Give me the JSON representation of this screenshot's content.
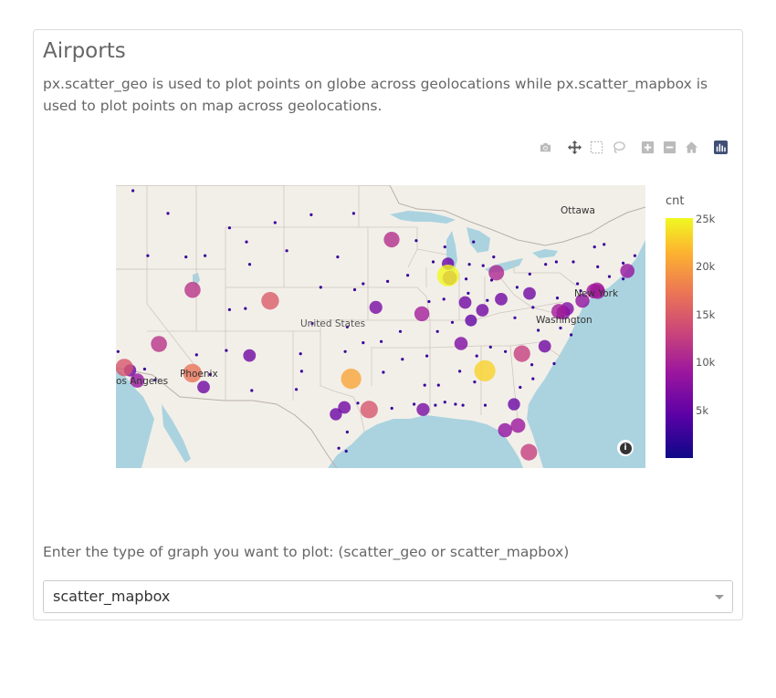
{
  "page": {
    "title": "Airports",
    "description": "px.scatter_geo is used to plot points on globe across geolocations while px.scatter_mapbox is used to plot points on map across geolocations.",
    "prompt": "Enter the type of graph you want to plot: (scatter_geo or scatter_mapbox)",
    "select_value": "scatter_mapbox"
  },
  "modebar": {
    "icons": [
      "camera-icon",
      "pan-icon",
      "box-select-icon",
      "lasso-icon",
      "zoom-in-icon",
      "zoom-out-icon",
      "reset-view-icon",
      "plotly-logo-icon"
    ]
  },
  "map": {
    "labels": {
      "country": "United States",
      "ottawa": "Ottawa",
      "new_york": "New York",
      "washington": "Washington",
      "phoenix": "Phoenix",
      "los_angeles": "os Angeles"
    },
    "colors": {
      "land": "#f2efe9",
      "water": "#aad3df",
      "border": "#c8c0b8"
    }
  },
  "colorbar": {
    "title": "cnt",
    "ticks": [
      "25k",
      "20k",
      "15k",
      "10k",
      "5k"
    ]
  },
  "chart_data": {
    "type": "scatter",
    "subtype": "scatter_mapbox",
    "color_scale": "plasma",
    "color_title": "cnt",
    "color_range": [
      0,
      25000
    ],
    "points": [
      {
        "lon": -87.9,
        "lat": 41.98,
        "cnt": 25000
      },
      {
        "lon": -84.43,
        "lat": 33.64,
        "cnt": 23000
      },
      {
        "lon": -97.04,
        "lat": 32.9,
        "cnt": 20500
      },
      {
        "lon": -112.0,
        "lat": 33.43,
        "cnt": 17000
      },
      {
        "lon": -104.67,
        "lat": 39.86,
        "cnt": 15000
      },
      {
        "lon": -95.34,
        "lat": 29.98,
        "cnt": 14500
      },
      {
        "lon": -118.41,
        "lat": 33.94,
        "cnt": 14500
      },
      {
        "lon": -80.94,
        "lat": 35.21,
        "cnt": 12500
      },
      {
        "lon": -80.29,
        "lat": 25.8,
        "cnt": 12500
      },
      {
        "lon": -111.98,
        "lat": 40.79,
        "cnt": 11500
      },
      {
        "lon": -93.22,
        "lat": 44.88,
        "cnt": 11000
      },
      {
        "lon": -115.15,
        "lat": 36.08,
        "cnt": 11500
      },
      {
        "lon": -83.35,
        "lat": 42.21,
        "cnt": 10500
      },
      {
        "lon": -90.37,
        "lat": 38.75,
        "cnt": 9500
      },
      {
        "lon": -77.46,
        "lat": 38.95,
        "cnt": 9500
      },
      {
        "lon": -74.17,
        "lat": 40.69,
        "cnt": 9000
      },
      {
        "lon": -73.78,
        "lat": 40.64,
        "cnt": 9000
      },
      {
        "lon": -73.87,
        "lat": 40.78,
        "cnt": 9500
      },
      {
        "lon": -71.0,
        "lat": 42.36,
        "cnt": 8500
      },
      {
        "lon": -87.75,
        "lat": 41.79,
        "cnt": 8500
      },
      {
        "lon": -117.19,
        "lat": 32.73,
        "cnt": 8500
      },
      {
        "lon": -81.31,
        "lat": 28.43,
        "cnt": 9000
      },
      {
        "lon": -82.53,
        "lat": 27.98,
        "cnt": 8000
      },
      {
        "lon": -75.24,
        "lat": 39.87,
        "cnt": 8000
      },
      {
        "lon": -77.04,
        "lat": 38.85,
        "cnt": 7500
      },
      {
        "lon": -76.67,
        "lat": 39.18,
        "cnt": 7000
      },
      {
        "lon": -86.68,
        "lat": 36.12,
        "cnt": 7000
      },
      {
        "lon": -94.71,
        "lat": 39.3,
        "cnt": 6500
      },
      {
        "lon": -90.26,
        "lat": 29.99,
        "cnt": 6500
      },
      {
        "lon": -84.67,
        "lat": 39.05,
        "cnt": 6000
      },
      {
        "lon": -82.89,
        "lat": 40.0,
        "cnt": 6000
      },
      {
        "lon": -86.29,
        "lat": 39.72,
        "cnt": 6000
      },
      {
        "lon": -80.23,
        "lat": 40.49,
        "cnt": 6000
      },
      {
        "lon": -78.79,
        "lat": 35.88,
        "cnt": 6000
      },
      {
        "lon": -106.61,
        "lat": 35.04,
        "cnt": 6000
      },
      {
        "lon": -97.67,
        "lat": 30.19,
        "cnt": 6000
      },
      {
        "lon": -98.47,
        "lat": 29.53,
        "cnt": 5500
      },
      {
        "lon": -81.69,
        "lat": 30.49,
        "cnt": 5500
      },
      {
        "lon": -87.91,
        "lat": 42.95,
        "cnt": 5500
      },
      {
        "lon": -85.74,
        "lat": 38.17,
        "cnt": 5000
      },
      {
        "lon": -117.87,
        "lat": 33.68,
        "cnt": 5500
      },
      {
        "lon": -110.94,
        "lat": 32.12,
        "cnt": 6000
      }
    ]
  }
}
